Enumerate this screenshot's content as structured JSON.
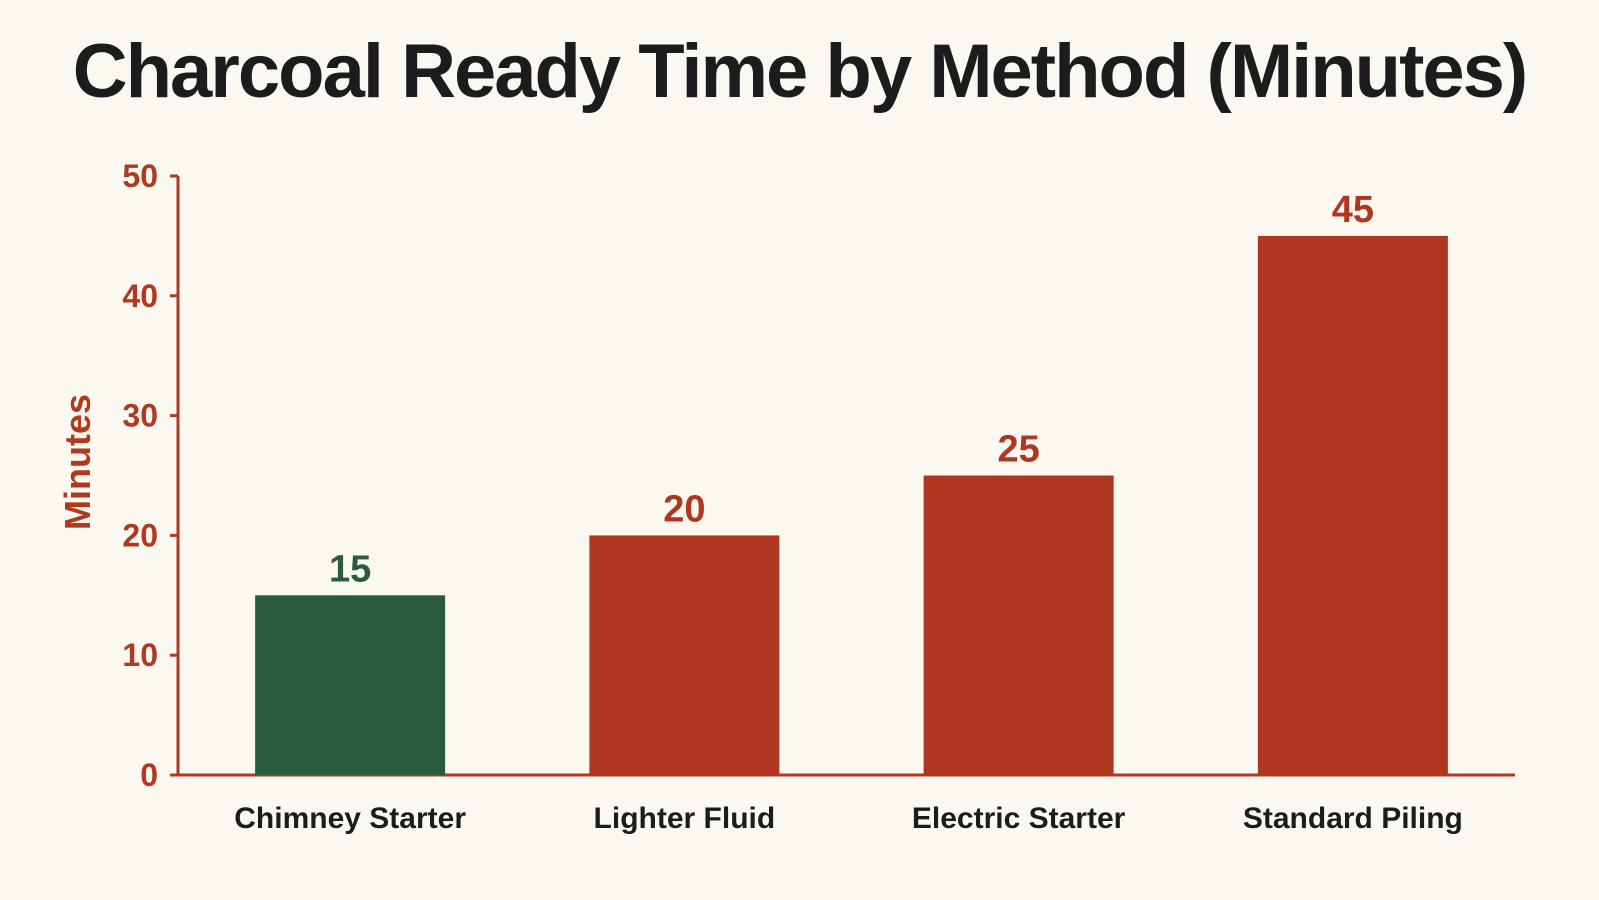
{
  "colors": {
    "background": "#fbf8f1",
    "title": "#1c1c1c",
    "axis": "#b0391f",
    "bar_default": "#b0371f",
    "bar_highlight": "#2a5b40",
    "category_text": "#1c1c1c"
  },
  "chart_data": {
    "type": "bar",
    "title": "Charcoal Ready Time by Method (Minutes)",
    "xlabel": "",
    "ylabel": "Minutes",
    "ylim": [
      0,
      50
    ],
    "yticks": [
      0,
      10,
      20,
      30,
      40,
      50
    ],
    "categories": [
      "Chimney Starter",
      "Lighter Fluid",
      "Electric Starter",
      "Standard Piling"
    ],
    "values": [
      15,
      20,
      25,
      45
    ],
    "bar_colors": [
      "#2a5b40",
      "#b0371f",
      "#b0371f",
      "#b0371f"
    ],
    "grid": false,
    "legend": "none"
  }
}
